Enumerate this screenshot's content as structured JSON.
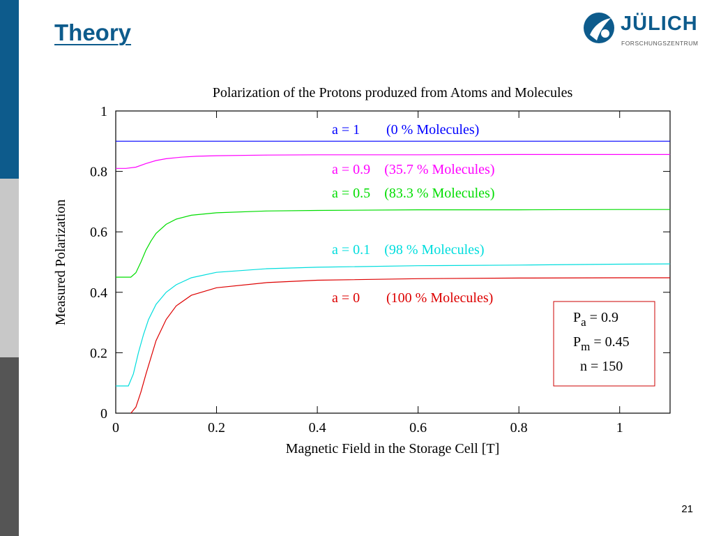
{
  "slide": {
    "title": "Theory",
    "page_number": "21",
    "sidebar_colors": [
      "#0d5b8c",
      "#c8c8c8",
      "#555555"
    ]
  },
  "logo": {
    "name": "JÜLICH",
    "subtitle": "FORSCHUNGSZENTRUM",
    "color": "#0d5b8c"
  },
  "chart_data": {
    "type": "line",
    "title": "Polarization of the Protons produzed from Atoms and Molecules",
    "xlabel": "Magnetic Field in the Storage Cell [T]",
    "ylabel": "Measured Polarization",
    "xlim": [
      0,
      1.1
    ],
    "ylim": [
      0,
      1
    ],
    "xticks": [
      "0",
      "0.2",
      "0.4",
      "0.6",
      "0.8",
      "1"
    ],
    "yticks": [
      "0",
      "0.2",
      "0.4",
      "0.6",
      "0.8",
      "1"
    ],
    "grid": false,
    "series": [
      {
        "label_a": "a = 1",
        "label_mol": "(0 % Molecules)",
        "color": "#0000ff",
        "x": [
          0.0,
          1.1
        ],
        "y": [
          0.9,
          0.9
        ]
      },
      {
        "label_a": "a = 0.9",
        "label_mol": "(35.7 % Molecules)",
        "color": "#ff00ff",
        "x": [
          0.0,
          0.02,
          0.04,
          0.06,
          0.08,
          0.1,
          0.13,
          0.16,
          0.2,
          0.3,
          0.4,
          0.6,
          0.8,
          1.0,
          1.1
        ],
        "y": [
          0.81,
          0.81,
          0.814,
          0.826,
          0.836,
          0.842,
          0.847,
          0.85,
          0.852,
          0.854,
          0.855,
          0.855,
          0.856,
          0.856,
          0.856
        ]
      },
      {
        "label_a": "a = 0.5",
        "label_mol": "(83.3 % Molecules)",
        "color": "#00dd00",
        "x": [
          0.0,
          0.03,
          0.04,
          0.05,
          0.06,
          0.07,
          0.08,
          0.1,
          0.12,
          0.15,
          0.2,
          0.3,
          0.4,
          0.6,
          0.8,
          1.0,
          1.1
        ],
        "y": [
          0.45,
          0.45,
          0.465,
          0.5,
          0.54,
          0.57,
          0.595,
          0.625,
          0.642,
          0.655,
          0.663,
          0.669,
          0.671,
          0.673,
          0.673,
          0.674,
          0.674
        ]
      },
      {
        "label_a": "a = 0.1",
        "label_mol": "(98 % Molecules)",
        "color": "#00dddd",
        "x": [
          0.0,
          0.025,
          0.035,
          0.045,
          0.055,
          0.065,
          0.08,
          0.1,
          0.12,
          0.15,
          0.2,
          0.3,
          0.4,
          0.6,
          0.8,
          1.0,
          1.1
        ],
        "y": [
          0.09,
          0.09,
          0.13,
          0.2,
          0.26,
          0.31,
          0.36,
          0.4,
          0.425,
          0.448,
          0.466,
          0.478,
          0.483,
          0.488,
          0.49,
          0.493,
          0.494
        ]
      },
      {
        "label_a": "a = 0",
        "label_mol": "(100 % Molecules)",
        "color": "#dd0000",
        "x": [
          0.03,
          0.04,
          0.05,
          0.06,
          0.08,
          0.1,
          0.12,
          0.15,
          0.2,
          0.3,
          0.4,
          0.6,
          0.8,
          1.0,
          1.1
        ],
        "y": [
          0.0,
          0.02,
          0.07,
          0.13,
          0.24,
          0.31,
          0.355,
          0.39,
          0.415,
          0.432,
          0.44,
          0.445,
          0.447,
          0.448,
          0.448
        ]
      }
    ],
    "legend": {
      "placement": "lower-right",
      "border_color": "#cc0000",
      "lines": [
        {
          "symbol": "P",
          "sub": "a",
          "value": "= 0.9"
        },
        {
          "symbol": "P",
          "sub": "m",
          "value": "= 0.45"
        },
        {
          "symbol": "n",
          "sub": "",
          "value": "= 150"
        }
      ]
    }
  }
}
